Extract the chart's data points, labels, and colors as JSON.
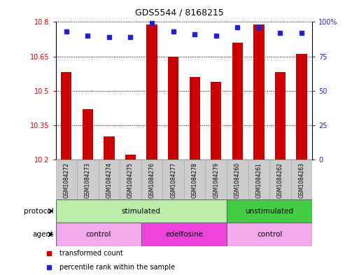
{
  "title": "GDS5544 / 8168215",
  "samples": [
    "GSM1084272",
    "GSM1084273",
    "GSM1084274",
    "GSM1084275",
    "GSM1084276",
    "GSM1084277",
    "GSM1084278",
    "GSM1084279",
    "GSM1084260",
    "GSM1084261",
    "GSM1084262",
    "GSM1084263"
  ],
  "transformed_count": [
    10.58,
    10.42,
    10.3,
    10.22,
    10.79,
    10.65,
    10.56,
    10.54,
    10.71,
    10.79,
    10.58,
    10.66
  ],
  "percentile_rank": [
    93,
    90,
    89,
    89,
    99,
    93,
    91,
    90,
    96,
    96,
    92,
    92
  ],
  "ylim_left": [
    10.2,
    10.8
  ],
  "ylim_right": [
    0,
    100
  ],
  "yticks_left": [
    10.2,
    10.35,
    10.5,
    10.65,
    10.8
  ],
  "yticks_right": [
    0,
    25,
    50,
    75,
    100
  ],
  "bar_color": "#cc0000",
  "dot_color": "#2222cc",
  "bar_width": 0.5,
  "protocol_labels": [
    {
      "text": "stimulated",
      "start": 0,
      "end": 7,
      "color": "#bbeeaa"
    },
    {
      "text": "unstimulated",
      "start": 8,
      "end": 11,
      "color": "#44cc44"
    }
  ],
  "agent_labels": [
    {
      "text": "control",
      "start": 0,
      "end": 3,
      "color": "#f4aaee"
    },
    {
      "text": "edelfosine",
      "start": 4,
      "end": 7,
      "color": "#ee44dd"
    },
    {
      "text": "control",
      "start": 8,
      "end": 11,
      "color": "#f4aaee"
    }
  ],
  "legend_items": [
    {
      "label": "transformed count",
      "color": "#cc0000"
    },
    {
      "label": "percentile rank within the sample",
      "color": "#2222cc"
    }
  ],
  "bg_color": "#ffffff",
  "tick_label_color_left": "#cc0000",
  "tick_label_color_right": "#2222cc",
  "sample_box_color": "#cccccc",
  "sample_box_edge": "#aaaaaa"
}
